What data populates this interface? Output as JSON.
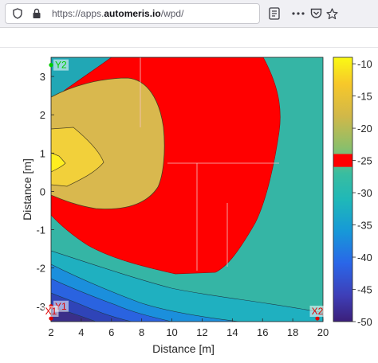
{
  "browser": {
    "url_prefix": "https://apps.",
    "url_domain": "automeris.io",
    "url_suffix": "/wpd/",
    "icons": [
      "shield-icon",
      "lock-icon",
      "reader-mode-icon",
      "more-icon",
      "pocket-icon",
      "bookmark-star-icon"
    ]
  },
  "chart_data": {
    "type": "heatmap",
    "style": "filled-contour",
    "xlabel": "Distance [m]",
    "ylabel": "Distance [m]",
    "xlim": [
      2,
      20
    ],
    "ylim": [
      -3.4,
      3.5
    ],
    "xticks": [
      "2",
      "4",
      "6",
      "8",
      "10",
      "12",
      "14",
      "16",
      "18",
      "20"
    ],
    "yticks": [
      "3",
      "2",
      "1",
      "0",
      "-1",
      "-2",
      "-3"
    ],
    "colorbar": {
      "range": [
        -50,
        -9
      ],
      "ticks": [
        "-10",
        "-15",
        "-20",
        "-25",
        "-30",
        "-35",
        "-40",
        "-45",
        "-50"
      ],
      "highlight_band": [
        -26,
        -24
      ],
      "highlight_color": "#ff0000"
    },
    "annotations": [
      {
        "label": "Y2",
        "x": 2,
        "y": 3.3,
        "color": "#00cc00"
      },
      {
        "label": "Y1",
        "x": 2,
        "y": -3.0,
        "color": "#dd0000"
      },
      {
        "label": "X1",
        "x": 2,
        "y": -3.4,
        "color": "#dd0000"
      },
      {
        "label": "X2",
        "x": 20,
        "y": -3.4,
        "color": "#dd0000"
      }
    ],
    "regions": [
      {
        "name": "outer-teal",
        "level_max": -26,
        "color": "#35b5a5"
      },
      {
        "name": "red-band",
        "level": [
          -26,
          -24
        ],
        "color": "#ff0000"
      },
      {
        "name": "khaki",
        "level": [
          -22,
          -17
        ],
        "color": "#d9b84e"
      },
      {
        "name": "yellow-peak",
        "level_min": -13,
        "color": "#ffee20"
      },
      {
        "name": "low-bands",
        "levels": [
          -40,
          -44,
          -48
        ],
        "colors": [
          "#1ea8b8",
          "#1b88dd",
          "#2a5fe0",
          "#2d3cb0",
          "#3a2f8a"
        ]
      }
    ]
  }
}
